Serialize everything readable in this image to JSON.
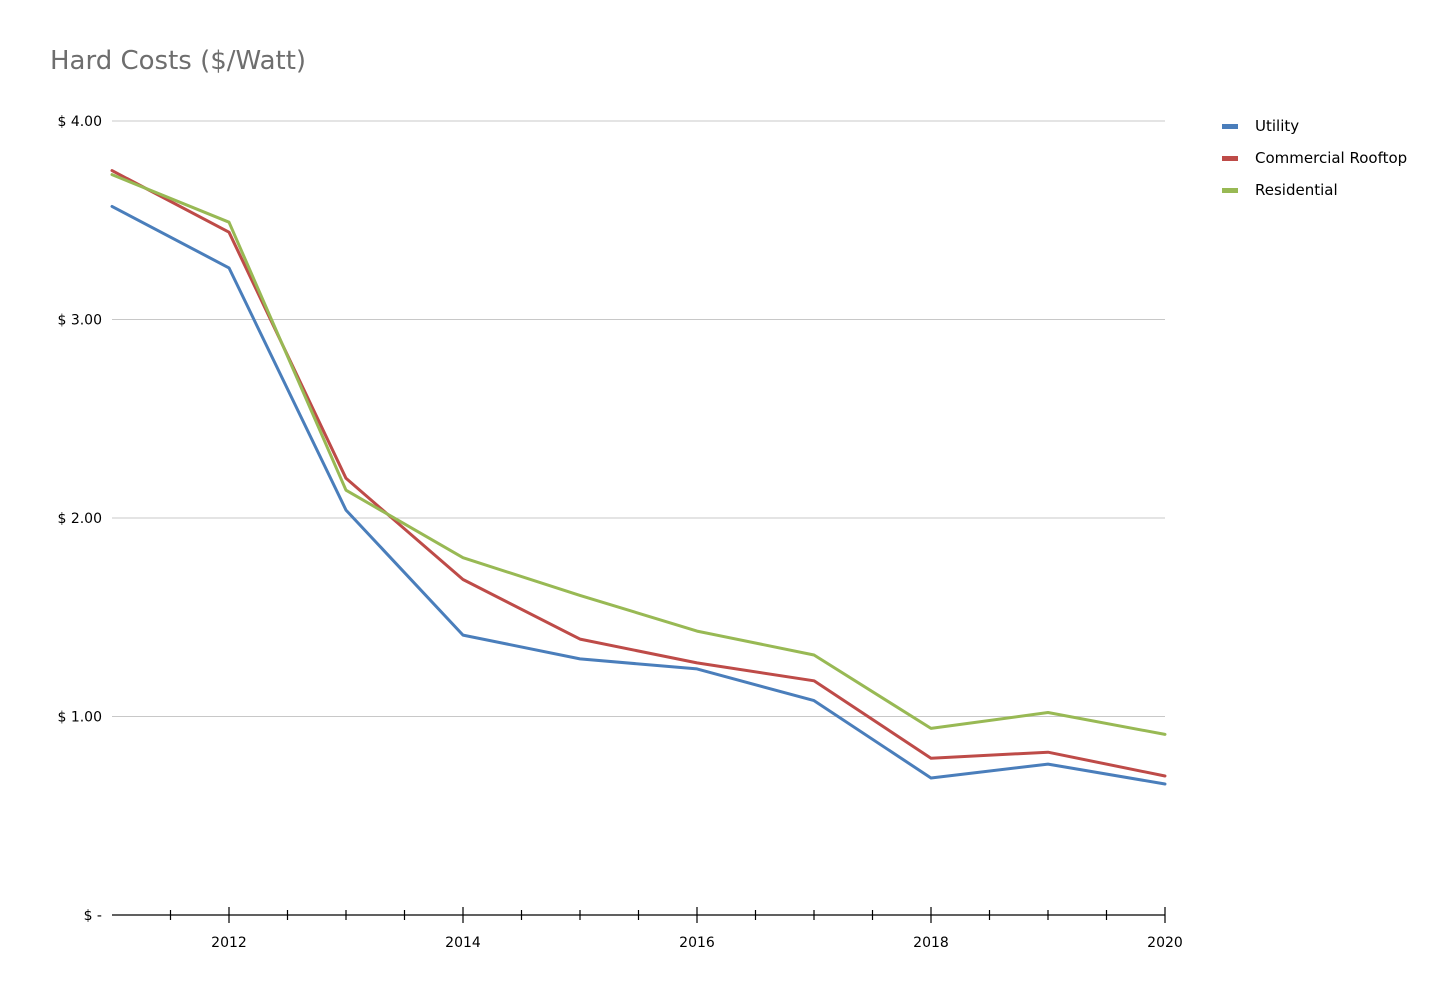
{
  "chart_data": {
    "type": "line",
    "title": "Hard Costs ($/Watt)",
    "xlabel": "",
    "ylabel": "",
    "x": [
      2011,
      2012,
      2013,
      2014,
      2015,
      2016,
      2017,
      2018,
      2019,
      2020
    ],
    "x_tick_labels": [
      "2012",
      "2014",
      "2016",
      "2018",
      "2020"
    ],
    "y_tick_labels": [
      "$ 4.00",
      "$ 3.00",
      "$ 2.00",
      "$ 1.00",
      "$ -"
    ],
    "xlim": [
      2011,
      2020
    ],
    "ylim": [
      0,
      4
    ],
    "grid": true,
    "legend": "right",
    "series": [
      {
        "name": "Utility",
        "color": "#4a7ebb",
        "values": [
          3.57,
          3.26,
          2.04,
          1.41,
          1.29,
          1.24,
          1.08,
          0.69,
          0.76,
          0.66
        ]
      },
      {
        "name": "Commercial Rooftop",
        "color": "#be4b48",
        "values": [
          3.75,
          3.44,
          2.2,
          1.69,
          1.39,
          1.27,
          1.18,
          0.79,
          0.82,
          0.7
        ]
      },
      {
        "name": "Residential",
        "color": "#98b954",
        "values": [
          3.73,
          3.49,
          2.14,
          1.8,
          1.61,
          1.43,
          1.31,
          0.94,
          1.02,
          0.91
        ]
      }
    ]
  }
}
